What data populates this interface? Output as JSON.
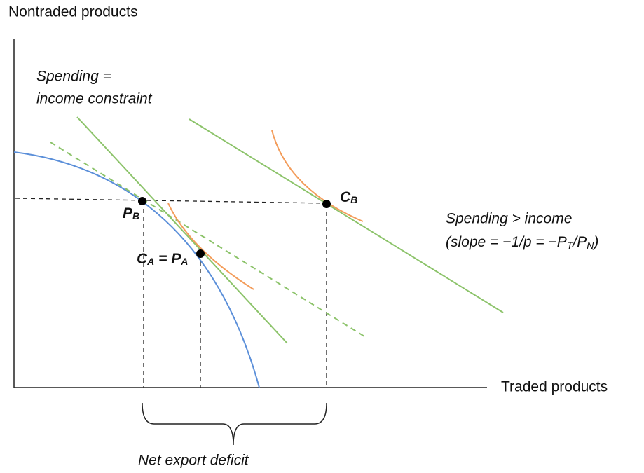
{
  "axes": {
    "y_label": "Nontraded products",
    "x_label": "Traded products"
  },
  "annotations": {
    "constraint": [
      "Spending =",
      "income constraint"
    ],
    "spending_gt_income": "Spending > income",
    "slope_note": {
      "before": "(slope = −1/p = −P",
      "sub1": "T",
      "mid": "/P",
      "sub2": "N",
      "after": ")"
    },
    "deficit": "Net export deficit"
  },
  "points": {
    "pb": {
      "main": "P",
      "sub": "B"
    },
    "ca_pa": {
      "main1": "C",
      "sub1": "A",
      "eq": " = ",
      "main2": "P",
      "sub2": "A"
    },
    "cb": {
      "main": "C",
      "sub": "B"
    }
  }
}
